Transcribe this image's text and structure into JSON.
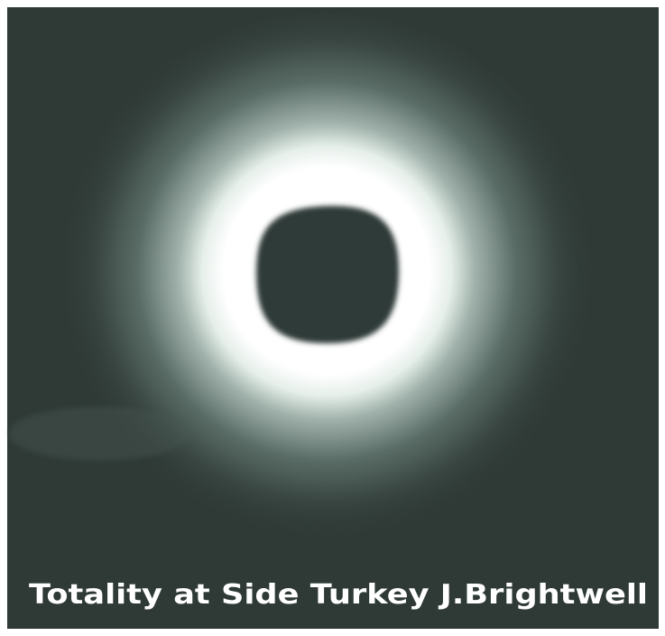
{
  "photo": {
    "caption": "Totality at Side Turkey J.Brightwell"
  }
}
